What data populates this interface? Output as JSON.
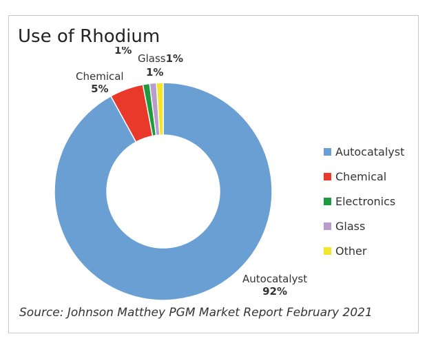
{
  "chart_data": {
    "type": "pie",
    "variant": "donut",
    "title": "Use of Rhodium",
    "categories": [
      "Autocatalyst",
      "Chemical",
      "Electronics",
      "Glass",
      "Other"
    ],
    "values": [
      92,
      5,
      1,
      1,
      1
    ],
    "value_labels": [
      "92%",
      "5%",
      "1%",
      "1%",
      "1%"
    ],
    "colors": [
      "#6a9fd4",
      "#e8392b",
      "#1f9a3e",
      "#b89ccc",
      "#f2e52a"
    ],
    "legend_position": "right",
    "source": "Source: Johnson Matthey PGM Market Report February 2021"
  }
}
